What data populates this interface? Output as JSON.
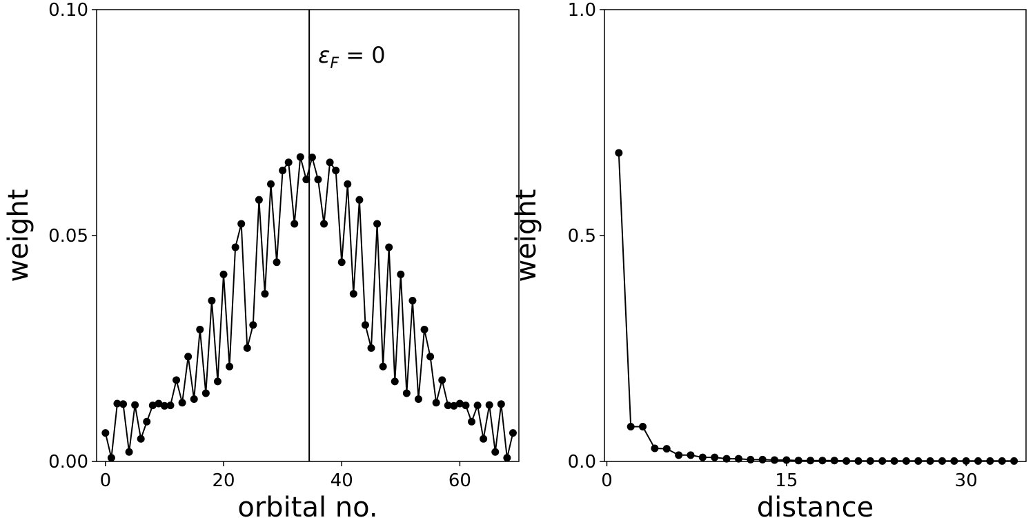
{
  "chart_data": [
    {
      "type": "line",
      "xlabel": "orbital no.",
      "ylabel": "weight",
      "xlim": [
        -1.5,
        70
      ],
      "ylim": [
        0,
        0.1
      ],
      "xticks": [
        0,
        20,
        40,
        60
      ],
      "yticks": [
        0.0,
        0.05,
        0.1
      ],
      "xtick_labels": [
        "0",
        "20",
        "40",
        "60"
      ],
      "ytick_labels": [
        "0.00",
        "0.05",
        "0.10"
      ],
      "markers": true,
      "grid": false,
      "line_color": "#000000",
      "marker_color": "#000000",
      "annotation": {
        "symbol": "ε",
        "subscript": "F",
        "rest": " = 0",
        "vline_x": 34.5
      },
      "series": [
        {
          "x": [
            0,
            1,
            2,
            3,
            4,
            5,
            6,
            7,
            8,
            9,
            10,
            11,
            12,
            13,
            14,
            15,
            16,
            17,
            18,
            19,
            20,
            21,
            22,
            23,
            24,
            25,
            26,
            27,
            28,
            29,
            30,
            31,
            32,
            33,
            34,
            35,
            36,
            37,
            38,
            39,
            40,
            41,
            42,
            43,
            44,
            45,
            46,
            47,
            48,
            49,
            50,
            51,
            52,
            53,
            54,
            55,
            56,
            57,
            58,
            59,
            60,
            61,
            62,
            63,
            64,
            65,
            66,
            67,
            68,
            69
          ],
          "values": [
            0.0063,
            0.0008,
            0.0128,
            0.0127,
            0.0021,
            0.0125,
            0.005,
            0.0088,
            0.0124,
            0.0128,
            0.0123,
            0.0124,
            0.018,
            0.013,
            0.0232,
            0.0138,
            0.0292,
            0.0151,
            0.0356,
            0.0177,
            0.0414,
            0.021,
            0.0474,
            0.0526,
            0.0251,
            0.0302,
            0.0579,
            0.0371,
            0.0614,
            0.0441,
            0.0644,
            0.0662,
            0.0526,
            0.0674,
            0.0624,
            0.0673,
            0.0624,
            0.0526,
            0.0662,
            0.0644,
            0.0441,
            0.0614,
            0.0371,
            0.0579,
            0.0302,
            0.0251,
            0.0526,
            0.021,
            0.0474,
            0.0177,
            0.0414,
            0.0151,
            0.0356,
            0.0138,
            0.0292,
            0.0232,
            0.013,
            0.018,
            0.0124,
            0.0123,
            0.0128,
            0.0124,
            0.0088,
            0.0124,
            0.005,
            0.0125,
            0.0021,
            0.0127,
            0.0008,
            0.0063
          ]
        }
      ]
    },
    {
      "type": "line",
      "xlabel": "distance",
      "ylabel": "weight",
      "xlim": [
        -0.2,
        35
      ],
      "ylim": [
        0,
        1.0
      ],
      "xticks": [
        0,
        15,
        30
      ],
      "yticks": [
        0.0,
        0.5,
        1.0
      ],
      "xtick_labels": [
        "0",
        "15",
        "30"
      ],
      "ytick_labels": [
        "0.0",
        "0.5",
        "1.0"
      ],
      "markers": true,
      "grid": false,
      "line_color": "#000000",
      "marker_color": "#000000",
      "series": [
        {
          "x": [
            1,
            2,
            3,
            4,
            5,
            6,
            7,
            8,
            9,
            10,
            11,
            12,
            13,
            14,
            15,
            16,
            17,
            18,
            19,
            20,
            21,
            22,
            23,
            24,
            25,
            26,
            27,
            28,
            29,
            30,
            31,
            32,
            33,
            34
          ],
          "values": [
            0.683,
            0.077,
            0.077,
            0.029,
            0.028,
            0.014,
            0.014,
            0.009,
            0.009,
            0.006,
            0.006,
            0.004,
            0.004,
            0.003,
            0.003,
            0.002,
            0.002,
            0.002,
            0.002,
            0.001,
            0.001,
            0.001,
            0.001,
            0.001,
            0.001,
            0.001,
            0.001,
            0.001,
            0.001,
            0.001,
            0.001,
            0.001,
            0.001,
            0.001
          ]
        }
      ]
    }
  ]
}
